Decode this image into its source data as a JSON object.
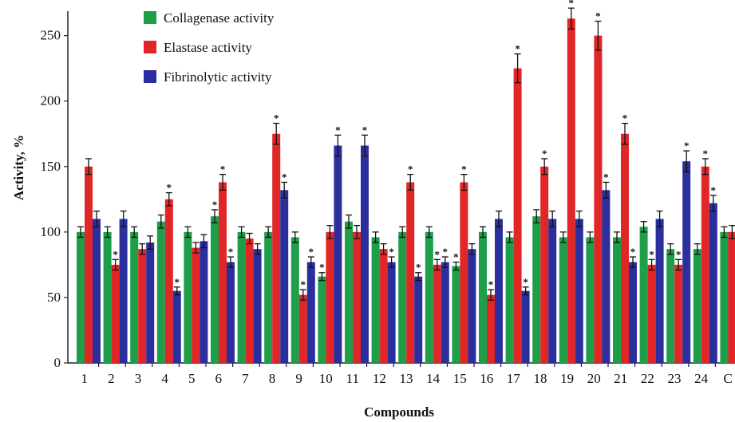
{
  "chart_data": {
    "type": "bar",
    "title": "",
    "xlabel": "Compounds",
    "ylabel": "Activity, %",
    "ylim": [
      0,
      265
    ],
    "yticks": [
      0,
      50,
      100,
      150,
      200,
      250
    ],
    "grid": false,
    "legend_position": "top-left",
    "categories": [
      "1",
      "2",
      "3",
      "4",
      "5",
      "6",
      "7",
      "8",
      "9",
      "10",
      "11",
      "12",
      "13",
      "14",
      "15",
      "16",
      "17",
      "18",
      "19",
      "20",
      "21",
      "22",
      "23",
      "24",
      "C"
    ],
    "series": [
      {
        "name": "Collagenase activity",
        "color": "#1f9e4a",
        "values": [
          100,
          100,
          100,
          108,
          100,
          112,
          100,
          100,
          96,
          66,
          108,
          96,
          100,
          100,
          74,
          100,
          96,
          112,
          96,
          96,
          96,
          104,
          87,
          87,
          100
        ],
        "errors": [
          4,
          4,
          4,
          5,
          4,
          5,
          4,
          4,
          4,
          3,
          5,
          4,
          4,
          4,
          3,
          4,
          4,
          5,
          4,
          4,
          4,
          4,
          4,
          4,
          4
        ],
        "significant": [
          false,
          false,
          false,
          false,
          false,
          true,
          false,
          false,
          false,
          true,
          false,
          false,
          false,
          false,
          true,
          false,
          false,
          false,
          false,
          false,
          false,
          false,
          false,
          false,
          false
        ]
      },
      {
        "name": "Elastase activity",
        "color": "#e02626",
        "values": [
          150,
          75,
          87,
          125,
          88,
          138,
          95,
          175,
          52,
          100,
          100,
          87,
          138,
          75,
          138,
          52,
          225,
          150,
          263,
          250,
          175,
          75,
          75,
          150,
          100
        ],
        "errors": [
          6,
          4,
          4,
          5,
          4,
          6,
          4,
          8,
          4,
          5,
          5,
          4,
          6,
          4,
          6,
          4,
          11,
          6,
          8,
          11,
          8,
          4,
          4,
          6,
          5
        ],
        "significant": [
          false,
          true,
          false,
          true,
          false,
          true,
          false,
          true,
          true,
          false,
          false,
          false,
          true,
          true,
          true,
          true,
          true,
          true,
          true,
          true,
          true,
          true,
          true,
          true,
          false
        ]
      },
      {
        "name": "Fibrinolytic activity",
        "color": "#2b2f9e",
        "values": [
          110,
          110,
          92,
          55,
          93,
          77,
          87,
          132,
          77,
          166,
          166,
          77,
          66,
          77,
          87,
          110,
          55,
          110,
          110,
          132,
          77,
          110,
          154,
          122,
          100
        ],
        "errors": [
          6,
          6,
          5,
          3,
          5,
          4,
          4,
          6,
          4,
          8,
          8,
          4,
          3,
          4,
          4,
          6,
          3,
          6,
          6,
          6,
          4,
          6,
          8,
          6,
          5
        ],
        "significant": [
          false,
          false,
          false,
          true,
          false,
          true,
          false,
          true,
          true,
          true,
          true,
          true,
          true,
          true,
          false,
          false,
          true,
          false,
          false,
          true,
          true,
          false,
          true,
          true,
          false
        ]
      }
    ],
    "annotation_symbol": "*"
  }
}
